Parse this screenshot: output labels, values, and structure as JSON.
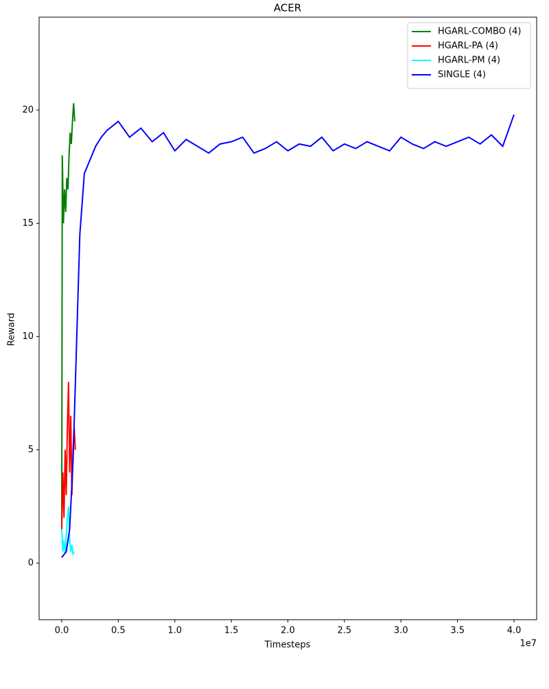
{
  "chart_data": {
    "type": "line",
    "title": "ACER",
    "x_label": "Timesteps",
    "y_label": "Reward",
    "x_offset_label": "1e7",
    "xlim": [
      -2000000,
      42000000
    ],
    "xticks": [
      {
        "value": 0,
        "label": "0.0"
      },
      {
        "value": 5000000,
        "label": "0.5"
      },
      {
        "value": 10000000,
        "label": "1.0"
      },
      {
        "value": 15000000,
        "label": "1.5"
      },
      {
        "value": 20000000,
        "label": "2.0"
      },
      {
        "value": 25000000,
        "label": "2.5"
      },
      {
        "value": 30000000,
        "label": "3.0"
      },
      {
        "value": 35000000,
        "label": "3.5"
      },
      {
        "value": 40000000,
        "label": "4.0"
      }
    ],
    "ylim": [
      -2.5,
      24.1
    ],
    "yticks": [
      0,
      5,
      10,
      15,
      20
    ],
    "legend": "upper right",
    "series": [
      {
        "name": "HGARL-COMBO (4)",
        "color": "#008000",
        "x": [
          0,
          50000,
          150000,
          250000,
          350000,
          450000,
          550000,
          650000,
          750000,
          850000,
          950000,
          1050000,
          1150000
        ],
        "values": [
          1.5,
          18,
          15,
          16.5,
          15.5,
          17,
          16.5,
          18,
          19,
          18.5,
          19.5,
          20.3,
          19.5
        ]
      },
      {
        "name": "HGARL-PA (4)",
        "color": "#ff0000",
        "x": [
          0,
          100000,
          200000,
          300000,
          400000,
          500000,
          600000,
          700000,
          800000,
          900000,
          1000000,
          1100000,
          1200000
        ],
        "values": [
          1.5,
          4,
          2,
          5,
          3,
          6,
          8,
          4,
          6.5,
          3,
          5,
          6,
          5
        ]
      },
      {
        "name": "HGARL-PM (4)",
        "color": "#00ffff",
        "x": [
          0,
          100000,
          200000,
          300000,
          400000,
          500000,
          600000,
          700000,
          800000,
          900000,
          1000000,
          1100000
        ],
        "values": [
          1.5,
          0.5,
          1,
          0.4,
          1.2,
          2,
          2.5,
          1,
          0.5,
          0.8,
          0.4,
          0.5
        ]
      },
      {
        "name": "SINGLE (4)",
        "color": "#0000ff",
        "x": [
          0,
          400000,
          700000,
          1000000,
          1300000,
          1600000,
          2000000,
          2500000,
          3000000,
          3500000,
          4000000,
          5000000,
          6000000,
          7000000,
          8000000,
          9000000,
          10000000,
          11000000,
          12000000,
          13000000,
          14000000,
          15000000,
          16000000,
          17000000,
          18000000,
          19000000,
          20000000,
          21000000,
          22000000,
          23000000,
          24000000,
          25000000,
          26000000,
          27000000,
          28000000,
          29000000,
          30000000,
          31000000,
          32000000,
          33000000,
          34000000,
          35000000,
          36000000,
          37000000,
          38000000,
          39000000,
          40000000
        ],
        "values": [
          0.25,
          0.5,
          1.5,
          4.5,
          9.5,
          14.5,
          17.2,
          17.8,
          18.4,
          18.8,
          19.1,
          19.5,
          18.8,
          19.2,
          18.6,
          19.0,
          18.2,
          18.7,
          18.4,
          18.1,
          18.5,
          18.6,
          18.8,
          18.1,
          18.3,
          18.6,
          18.2,
          18.5,
          18.4,
          18.8,
          18.2,
          18.5,
          18.3,
          18.6,
          18.4,
          18.2,
          18.8,
          18.5,
          18.3,
          18.6,
          18.4,
          18.6,
          18.8,
          18.5,
          18.9,
          18.4,
          19.8
        ]
      }
    ]
  }
}
